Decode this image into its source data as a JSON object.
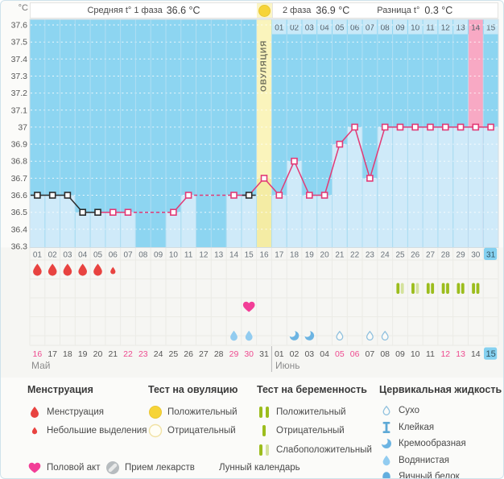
{
  "header": {
    "unit": "°C",
    "avg_phase1_label": "Средняя t° 1 фаза",
    "avg_phase1_value": "36.6 °C",
    "phase2_label": "2 фаза",
    "phase2_value": "36.9 °C",
    "diff_label": "Разница t°",
    "diff_value": "0.3 °C",
    "ovulation_column_label": "ОВУЛЯЦИЯ"
  },
  "chart_data": {
    "type": "line",
    "y_axis_unit": "°C",
    "y_ticks": [
      "37.6",
      "37.5",
      "37.4",
      "37.3",
      "37.2",
      "37.1",
      "37",
      "36.9",
      "36.8",
      "36.7",
      "36.6",
      "36.5",
      "36.4",
      "36.3"
    ],
    "ylim": [
      36.3,
      37.6
    ],
    "gridline_step": 0.1,
    "cycle_days": [
      "01",
      "02",
      "03",
      "04",
      "05",
      "06",
      "07",
      "08",
      "09",
      "10",
      "11",
      "12",
      "13",
      "14",
      "15",
      "16",
      "17",
      "18",
      "19",
      "20",
      "21",
      "22",
      "23",
      "24",
      "25",
      "26",
      "27",
      "28",
      "29",
      "30",
      "31"
    ],
    "temps_by_cycle_day": [
      36.6,
      36.6,
      36.6,
      36.5,
      36.5,
      36.5,
      36.5,
      null,
      null,
      36.5,
      36.6,
      null,
      null,
      36.6,
      36.6,
      36.7,
      36.6,
      36.8,
      36.6,
      36.6,
      36.9,
      37.0,
      36.7,
      37.0,
      37.0,
      37.0,
      37.0,
      37.0,
      37.0,
      37.0,
      37.0
    ],
    "black_marker_cycle_days": [
      1,
      2,
      3,
      4,
      5,
      15
    ],
    "ovulation_cycle_day": 16,
    "pink_highlight_cycle_day": 30,
    "today_cycle_day": 31,
    "moon_calendar_cycle_day": 8
  },
  "events": {
    "menstruation_days": [
      1,
      2,
      3,
      4,
      5
    ],
    "spotting_days": [
      6
    ],
    "intercourse_days": [
      15
    ],
    "pregnancy_tests": {
      "weak_positive_days": [
        25,
        26
      ],
      "positive_days": [
        27,
        28,
        29,
        30
      ]
    },
    "cervical_fluid": {
      "watery_days": [
        14,
        15
      ],
      "creamy_days": [
        18,
        19
      ],
      "dry_days": [
        21,
        23,
        24
      ]
    }
  },
  "calendar": {
    "may": {
      "label": "Май",
      "dates": [
        "16",
        "17",
        "18",
        "19",
        "20",
        "21",
        "22",
        "23",
        "24",
        "25",
        "26",
        "27",
        "28",
        "29",
        "30",
        "31"
      ],
      "weekend_dates": [
        16,
        22,
        23,
        29,
        30
      ]
    },
    "june": {
      "label": "Июнь",
      "dates": [
        "01",
        "02",
        "03",
        "04",
        "05",
        "06",
        "07",
        "08",
        "09",
        "10",
        "11",
        "12",
        "13",
        "14",
        "15"
      ],
      "weekend_dates": [
        5,
        6,
        12,
        13
      ],
      "today_date": 15
    }
  },
  "colors": {
    "chart_bg": "#8dd5f1",
    "area_fill": "#cfeaf9",
    "ovulation_column": "#faf4bc",
    "ovulation_fill": "#f4ecA4",
    "highlight_column_pink": "#f8a9c4",
    "day_strip_bg": "#c9e9f8",
    "temp_line": "#e23a76",
    "marker_black": "#2b2b2b",
    "menstruation_red": "#e84340",
    "test_positive_green": "#9cbd1d",
    "test_weak_green": "#d4e29c",
    "intercourse_pink": "#f23e97",
    "cervical_blue": "#5ea9d6",
    "watery_blue": "#92ccf0",
    "eggwhite_blue": "#63aede",
    "moon_orange": "#f0941f",
    "today_highlight": "#85d1f0",
    "weekend_date": "#ee4a8f",
    "ovulation_yellow": "#f6d438",
    "pill_gray": "#b7bcbf"
  },
  "legend": {
    "menstruation": {
      "title": "Менструация",
      "items": [
        {
          "icon": "drop",
          "label": "Менструация"
        },
        {
          "icon": "drop-small",
          "label": "Небольшие выделения"
        }
      ]
    },
    "ovulation_test": {
      "title": "Тест на овуляцию",
      "items": [
        {
          "icon": "circle-filled",
          "label": "Положительный"
        },
        {
          "icon": "circle-outline",
          "label": "Отрицательный"
        }
      ]
    },
    "pregnancy_test": {
      "title": "Тест на беременность",
      "items": [
        {
          "icon": "bars-positive",
          "label": "Положительный"
        },
        {
          "icon": "bar-negative",
          "label": "Отрицательный"
        },
        {
          "icon": "bars-weak",
          "label": "Слабоположительный"
        }
      ]
    },
    "cervical": {
      "title": "Цервикальная жидкость",
      "items": [
        {
          "icon": "dry",
          "label": "Сухо"
        },
        {
          "icon": "sticky",
          "label": "Клейкая"
        },
        {
          "icon": "creamy",
          "label": "Кремообразная"
        },
        {
          "icon": "watery",
          "label": "Водянистая"
        },
        {
          "icon": "eggwhite",
          "label": "Яичный белок"
        }
      ]
    },
    "bottom": [
      {
        "icon": "heart",
        "label": "Половой акт"
      },
      {
        "icon": "pill",
        "label": "Прием лекарств"
      },
      {
        "icon": "moon",
        "label": "Лунный календарь"
      }
    ]
  }
}
